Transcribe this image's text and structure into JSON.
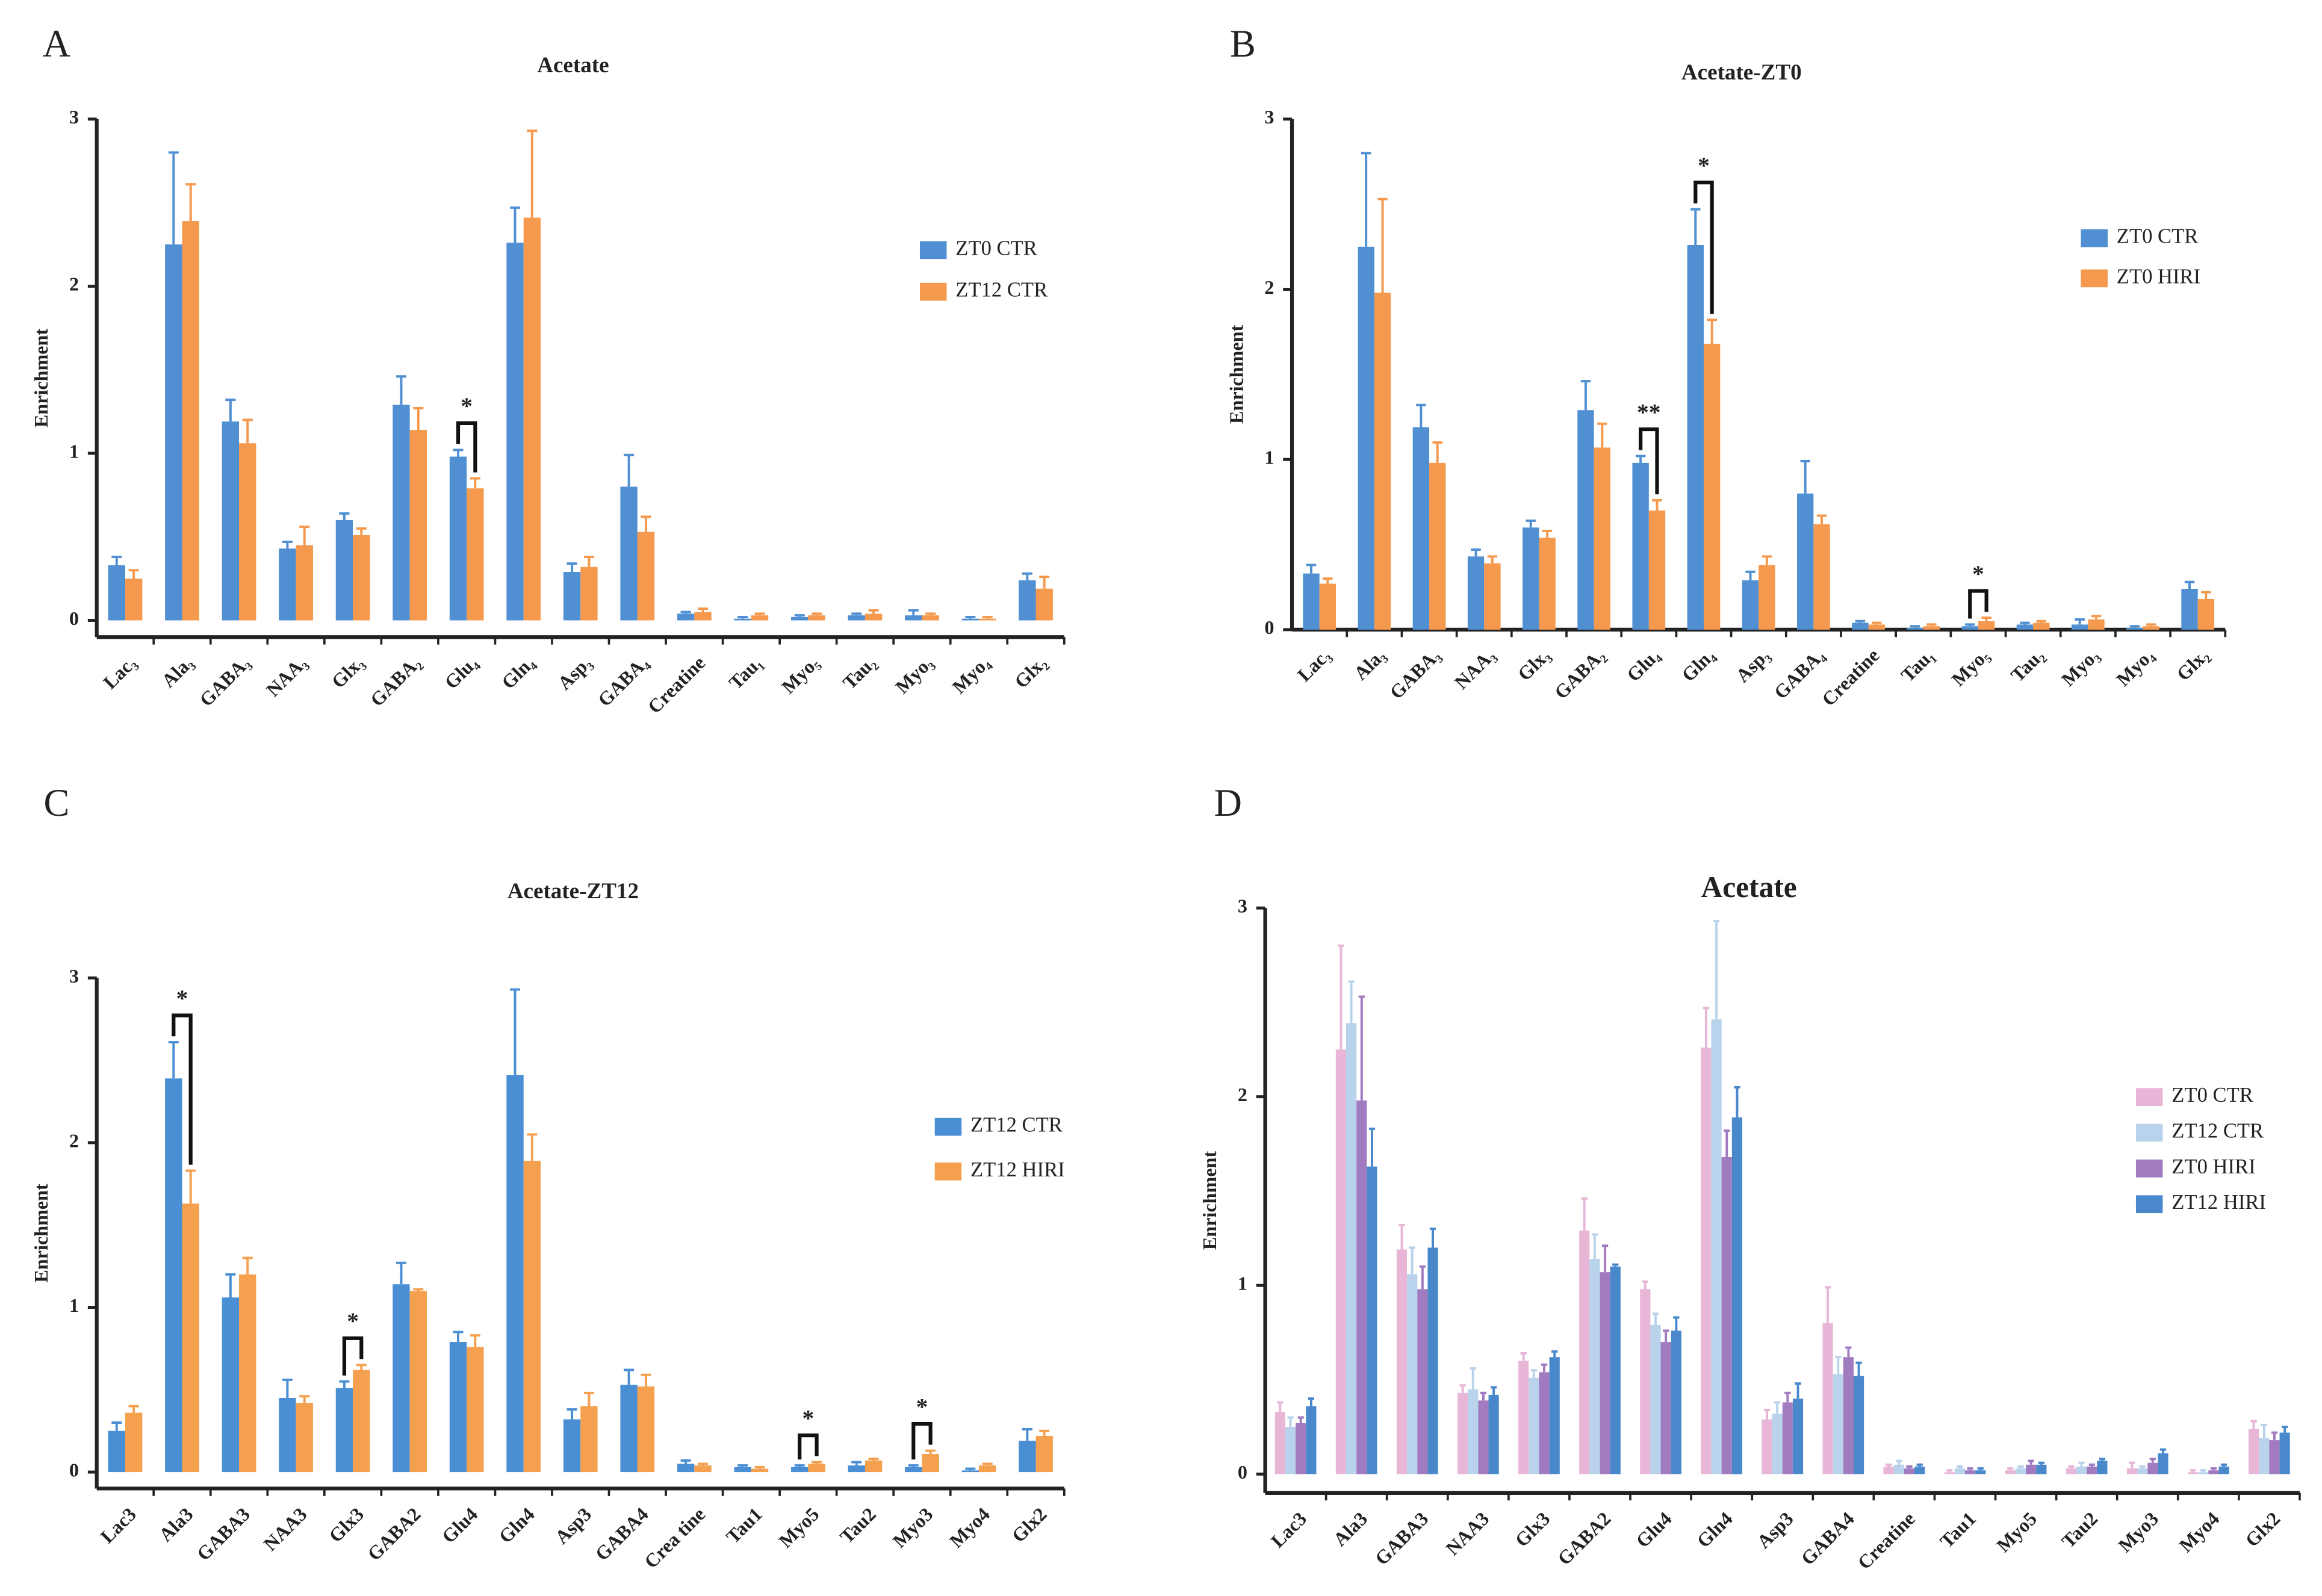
{
  "chart_data": [
    {
      "type": "bar",
      "panel": "A",
      "title": "Acetate",
      "y_label": "Enrichment",
      "categories": [
        "Lac₃",
        "Ala₃",
        "GABA₃",
        "NAA₃",
        "Glx₃",
        "GABA₂",
        "Glu₄",
        "Gln₄",
        "Asp₃",
        "GABA₄",
        "Creatine",
        "Tau₁",
        "Myo₅",
        "Tau₂",
        "Myo₃",
        "Myo₄",
        "Glx₂"
      ],
      "series": [
        {
          "name": "ZT0 CTR",
          "color": "#4f8fd2",
          "values": [
            0.33,
            2.25,
            1.19,
            0.43,
            0.6,
            1.29,
            0.98,
            2.26,
            0.29,
            0.8,
            0.04,
            0.01,
            0.02,
            0.03,
            0.03,
            0.01,
            0.24
          ],
          "errors": [
            0.05,
            0.55,
            0.13,
            0.04,
            0.04,
            0.17,
            0.04,
            0.21,
            0.05,
            0.19,
            0.01,
            0.01,
            0.01,
            0.01,
            0.03,
            0.01,
            0.04
          ]
        },
        {
          "name": "ZT12 CTR",
          "color": "#f5994e",
          "values": [
            0.25,
            2.39,
            1.06,
            0.45,
            0.51,
            1.14,
            0.79,
            2.41,
            0.32,
            0.53,
            0.05,
            0.03,
            0.03,
            0.04,
            0.03,
            0.01,
            0.19
          ],
          "errors": [
            0.05,
            0.22,
            0.14,
            0.11,
            0.04,
            0.13,
            0.06,
            0.52,
            0.06,
            0.09,
            0.02,
            0.01,
            0.01,
            0.02,
            0.01,
            0.01,
            0.07
          ]
        }
      ],
      "annotations": [
        {
          "text": "*",
          "category": "Glu₄"
        }
      ],
      "ylim": [
        -0.1,
        3
      ],
      "yticks": [
        0,
        1,
        2,
        3
      ]
    },
    {
      "type": "bar",
      "panel": "B",
      "title": "Acetate-ZT0",
      "y_label": "Enrichment",
      "categories": [
        "Lac₃",
        "Ala₃",
        "GABA₃",
        "NAA₃",
        "Glx₃",
        "GABA₂",
        "Glu₄",
        "Gln₄",
        "Asp₃",
        "GABA₄",
        "Creatine",
        "Tau₁",
        "Myo₅",
        "Tau₂",
        "Myo₃",
        "Myo₄",
        "Glx₂"
      ],
      "series": [
        {
          "name": "ZT0 CTR",
          "color": "#4f8fd2",
          "values": [
            0.33,
            2.25,
            1.19,
            0.43,
            0.6,
            1.29,
            0.98,
            2.26,
            0.29,
            0.8,
            0.04,
            0.01,
            0.02,
            0.03,
            0.03,
            0.01,
            0.24
          ],
          "errors": [
            0.05,
            0.55,
            0.13,
            0.04,
            0.04,
            0.17,
            0.04,
            0.21,
            0.05,
            0.19,
            0.01,
            0.01,
            0.01,
            0.01,
            0.03,
            0.01,
            0.04
          ]
        },
        {
          "name": "ZT0 HIRI",
          "color": "#f5994e",
          "values": [
            0.27,
            1.98,
            0.98,
            0.39,
            0.54,
            1.07,
            0.7,
            1.68,
            0.38,
            0.62,
            0.03,
            0.02,
            0.05,
            0.04,
            0.06,
            0.02,
            0.18
          ],
          "errors": [
            0.03,
            0.55,
            0.12,
            0.04,
            0.04,
            0.14,
            0.06,
            0.14,
            0.05,
            0.05,
            0.01,
            0.01,
            0.02,
            0.01,
            0.02,
            0.01,
            0.04
          ]
        }
      ],
      "annotations": [
        {
          "text": "**",
          "category": "Glu₄"
        },
        {
          "text": "*",
          "category": "Gln₄"
        },
        {
          "text": "*",
          "category": "Myo₅"
        }
      ],
      "ylim": [
        0,
        3
      ],
      "yticks": [
        0,
        1,
        2,
        3
      ]
    },
    {
      "type": "bar",
      "panel": "C",
      "title": "Acetate-ZT12",
      "y_label": "Enrichment",
      "categories": [
        "Lac3",
        "Ala3",
        "GABA3",
        "NAA3",
        "Glx3",
        "GABA2",
        "Glu4",
        "Gln4",
        "Asp3",
        "GABA4",
        "Crea tine",
        "Tau1",
        "Myo5",
        "Tau2",
        "Myo3",
        "Myo4",
        "Glx2"
      ],
      "series": [
        {
          "name": "ZT12 CTR",
          "color": "#4a8fd4",
          "values": [
            0.25,
            2.39,
            1.06,
            0.45,
            0.51,
            1.14,
            0.79,
            2.41,
            0.32,
            0.53,
            0.05,
            0.03,
            0.03,
            0.04,
            0.03,
            0.01,
            0.19
          ],
          "errors": [
            0.05,
            0.22,
            0.14,
            0.11,
            0.04,
            0.13,
            0.06,
            0.52,
            0.06,
            0.09,
            0.02,
            0.01,
            0.01,
            0.02,
            0.01,
            0.01,
            0.07
          ]
        },
        {
          "name": "ZT12 HIRI",
          "color": "#f5a04f",
          "values": [
            0.36,
            1.63,
            1.2,
            0.42,
            0.62,
            1.1,
            0.76,
            1.89,
            0.4,
            0.52,
            0.04,
            0.02,
            0.05,
            0.07,
            0.11,
            0.04,
            0.22
          ],
          "errors": [
            0.04,
            0.2,
            0.1,
            0.04,
            0.03,
            0.01,
            0.07,
            0.16,
            0.08,
            0.07,
            0.01,
            0.01,
            0.01,
            0.01,
            0.02,
            0.01,
            0.03
          ]
        }
      ],
      "annotations": [
        {
          "text": "*",
          "category": "Ala3"
        },
        {
          "text": "*",
          "category": "Glx3"
        },
        {
          "text": "*",
          "category": "Myo5"
        },
        {
          "text": "*",
          "category": "Myo3"
        }
      ],
      "ylim": [
        -0.1,
        3
      ],
      "yticks": [
        0,
        1,
        2,
        3
      ]
    },
    {
      "type": "bar",
      "panel": "D",
      "title": "Acetate",
      "y_label": "Enrichment",
      "categories": [
        "Lac3",
        "Ala3",
        "GABA3",
        "NAA3",
        "Glx3",
        "GABA2",
        "Glu4",
        "Gln4",
        "Asp3",
        "GABA4",
        "Creatine",
        "Tau1",
        "Myo5",
        "Tau2",
        "Myo3",
        "Myo4",
        "Glx2"
      ],
      "series": [
        {
          "name": "ZT0 CTR",
          "color": "#e8b6d6",
          "values": [
            0.33,
            2.25,
            1.19,
            0.43,
            0.6,
            1.29,
            0.98,
            2.26,
            0.29,
            0.8,
            0.04,
            0.01,
            0.02,
            0.03,
            0.03,
            0.01,
            0.24
          ],
          "errors": [
            0.05,
            0.55,
            0.13,
            0.04,
            0.04,
            0.17,
            0.04,
            0.21,
            0.05,
            0.19,
            0.01,
            0.01,
            0.01,
            0.01,
            0.03,
            0.01,
            0.04
          ]
        },
        {
          "name": "ZT12 CTR",
          "color": "#bad3ec",
          "values": [
            0.25,
            2.39,
            1.06,
            0.45,
            0.51,
            1.14,
            0.79,
            2.41,
            0.32,
            0.53,
            0.05,
            0.03,
            0.03,
            0.04,
            0.03,
            0.01,
            0.19
          ],
          "errors": [
            0.05,
            0.22,
            0.14,
            0.11,
            0.04,
            0.13,
            0.06,
            0.52,
            0.06,
            0.09,
            0.02,
            0.01,
            0.01,
            0.02,
            0.01,
            0.01,
            0.07
          ]
        },
        {
          "name": "ZT0 HIRI",
          "color": "#a17bc0",
          "values": [
            0.27,
            1.98,
            0.98,
            0.39,
            0.54,
            1.07,
            0.7,
            1.68,
            0.38,
            0.62,
            0.03,
            0.02,
            0.05,
            0.04,
            0.06,
            0.02,
            0.18
          ],
          "errors": [
            0.03,
            0.55,
            0.12,
            0.04,
            0.04,
            0.14,
            0.06,
            0.14,
            0.05,
            0.05,
            0.01,
            0.01,
            0.02,
            0.01,
            0.02,
            0.01,
            0.04
          ]
        },
        {
          "name": "ZT12 HIRI",
          "color": "#4a88cc",
          "values": [
            0.36,
            1.63,
            1.2,
            0.42,
            0.62,
            1.1,
            0.76,
            1.89,
            0.4,
            0.52,
            0.04,
            0.02,
            0.05,
            0.07,
            0.11,
            0.04,
            0.22
          ],
          "errors": [
            0.04,
            0.2,
            0.1,
            0.04,
            0.03,
            0.01,
            0.07,
            0.16,
            0.08,
            0.07,
            0.01,
            0.01,
            0.01,
            0.01,
            0.02,
            0.01,
            0.03
          ]
        }
      ],
      "ylim": [
        -0.1,
        3
      ],
      "yticks": [
        0,
        1,
        2,
        3
      ]
    }
  ]
}
